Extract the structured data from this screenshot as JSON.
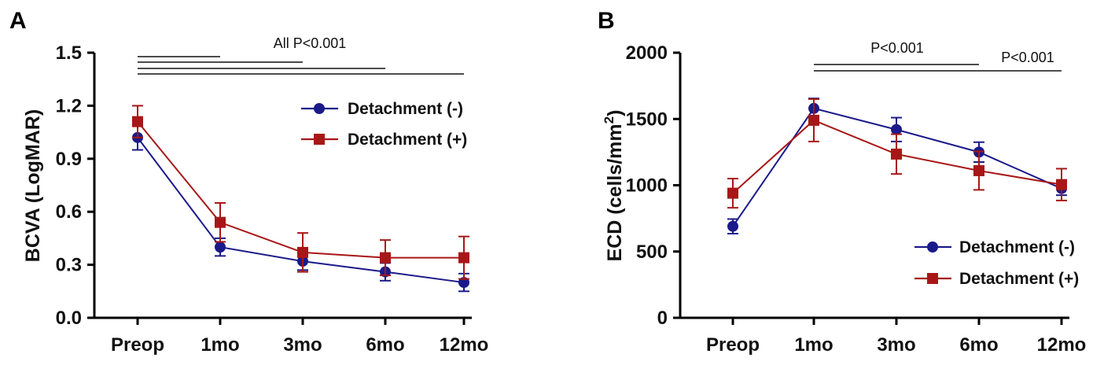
{
  "figure": {
    "colors": {
      "series1": "#1b1a8a",
      "series2": "#a81717"
    }
  },
  "chart_data": [
    {
      "panel": "A",
      "type": "line",
      "categories": [
        "Preop",
        "1mo",
        "3mo",
        "6mo",
        "12mo"
      ],
      "ylabel": "BCVA (LogMAR)",
      "xlabel": "",
      "ylim": [
        0,
        1.5
      ],
      "yticks": [
        "0.0",
        "0.3",
        "0.6",
        "0.9",
        "1.2",
        "1.5"
      ],
      "series": [
        {
          "name": "Detachment (-)",
          "marker": "circle",
          "color": "#1b1a8a",
          "values": [
            1.02,
            0.4,
            0.32,
            0.26,
            0.2
          ],
          "errors": [
            0.07,
            0.05,
            0.05,
            0.05,
            0.05
          ]
        },
        {
          "name": "Detachment (+)",
          "marker": "square",
          "color": "#a81717",
          "values": [
            1.11,
            0.54,
            0.37,
            0.34,
            0.34
          ],
          "errors": [
            0.09,
            0.11,
            0.11,
            0.1,
            0.12
          ]
        }
      ],
      "annotation": "All P<0.001",
      "sig_brackets": [
        {
          "from": 0,
          "to": 1
        },
        {
          "from": 0,
          "to": 2
        },
        {
          "from": 0,
          "to": 3
        },
        {
          "from": 0,
          "to": 4
        }
      ],
      "legend_position": "top-right"
    },
    {
      "panel": "B",
      "type": "line",
      "categories": [
        "Preop",
        "1mo",
        "3mo",
        "6mo",
        "12mo"
      ],
      "ylabel": "ECD (cells/mm",
      "ylabel_sup": "2",
      "ylabel_close": ")",
      "xlabel": "",
      "ylim": [
        0,
        2000
      ],
      "yticks": [
        "0",
        "500",
        "1000",
        "1500",
        "2000"
      ],
      "series": [
        {
          "name": "Detachment (-)",
          "marker": "circle",
          "color": "#1b1a8a",
          "values": [
            690,
            1580,
            1420,
            1250,
            975
          ],
          "errors": [
            55,
            75,
            90,
            75,
            50
          ]
        },
        {
          "name": "Detachment (+)",
          "marker": "square",
          "color": "#a81717",
          "values": [
            940,
            1490,
            1235,
            1110,
            1005
          ],
          "errors": [
            110,
            160,
            150,
            145,
            120
          ]
        }
      ],
      "annotations": [
        "P<0.001",
        "P<0.001"
      ],
      "sig_brackets": [
        {
          "from": 1,
          "to": 3
        },
        {
          "from": 1,
          "to": 4
        }
      ],
      "legend_position": "bottom-right"
    }
  ]
}
